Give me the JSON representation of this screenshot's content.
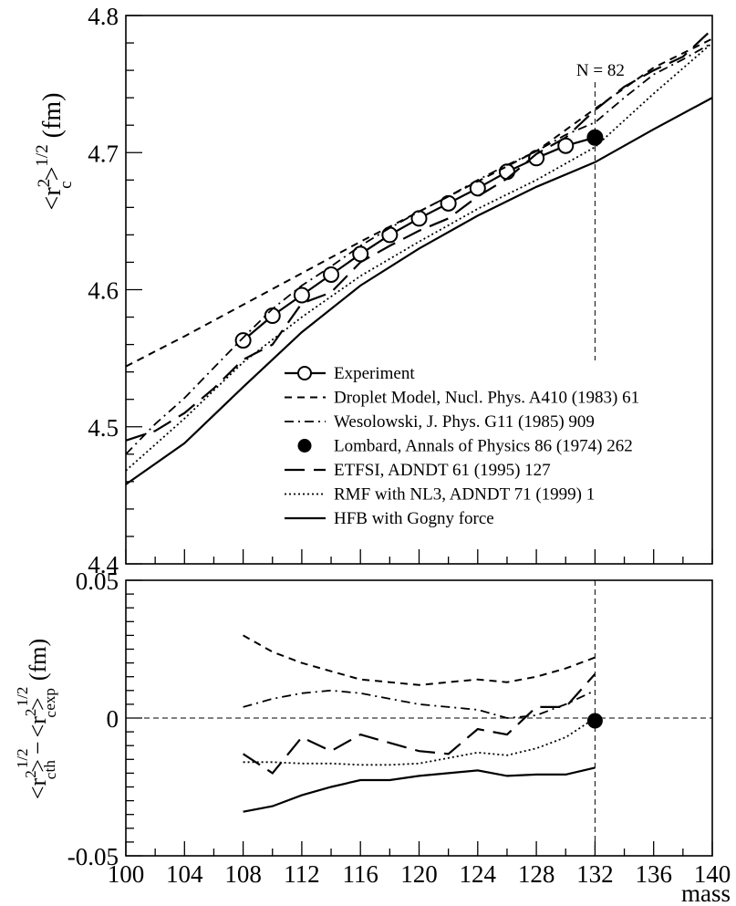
{
  "chart_data": [
    {
      "type": "line",
      "panel": "top",
      "ylabel": "<r_c^2>^1/2 (fm)",
      "xlim": [
        100,
        140
      ],
      "ylim": [
        4.4,
        4.8
      ],
      "yticks": [
        "4.4",
        "4.5",
        "4.6",
        "4.7",
        "4.8"
      ],
      "annotation": "N = 82",
      "vline_x": 132,
      "legend_position": "bottom-right",
      "series": [
        {
          "name": "Experiment",
          "style": "solid-circles",
          "x": [
            108,
            110,
            112,
            114,
            116,
            118,
            120,
            122,
            124,
            126,
            128,
            130,
            132
          ],
          "y": [
            4.563,
            4.581,
            4.596,
            4.611,
            4.626,
            4.64,
            4.652,
            4.663,
            4.674,
            4.686,
            4.696,
            4.705,
            4.711
          ]
        },
        {
          "name": "Droplet Model, Nucl. Phys. A410 (1983) 61",
          "style": "dashed",
          "x": [
            100,
            104,
            108,
            112,
            116,
            120,
            124,
            128,
            132,
            136,
            140
          ],
          "y": [
            4.544,
            4.566,
            4.589,
            4.612,
            4.635,
            4.657,
            4.679,
            4.701,
            4.732,
            4.762,
            4.783
          ]
        },
        {
          "name": "Wesolowski, J. Phys. G11 (1985) 909",
          "style": "dashdot",
          "x": [
            100,
            102,
            104,
            106,
            108,
            110,
            112,
            114,
            116,
            118,
            120,
            122,
            124,
            126,
            128,
            130,
            132,
            134,
            136,
            138,
            140
          ],
          "y": [
            4.48,
            4.502,
            4.521,
            4.543,
            4.565,
            4.586,
            4.603,
            4.617,
            4.632,
            4.645,
            4.657,
            4.668,
            4.68,
            4.691,
            4.701,
            4.713,
            4.722,
            4.74,
            4.757,
            4.768,
            4.78
          ]
        },
        {
          "name": "Lombard, Annals of Physics 86 (1974) 262",
          "style": "dot-marker",
          "x": [
            132
          ],
          "y": [
            4.711
          ]
        },
        {
          "name": "ETFSI, ADNDT 61 (1995) 127",
          "style": "longdash",
          "x": [
            100,
            102,
            104,
            106,
            108,
            110,
            112,
            114,
            116,
            118,
            120,
            122,
            124,
            126,
            128,
            130,
            132,
            134,
            136,
            138,
            140
          ],
          "y": [
            4.49,
            4.497,
            4.51,
            4.528,
            4.549,
            4.56,
            4.59,
            4.598,
            4.62,
            4.632,
            4.643,
            4.652,
            4.668,
            4.681,
            4.699,
            4.711,
            4.731,
            4.748,
            4.76,
            4.77,
            4.79
          ]
        },
        {
          "name": "RMF with NL3, ADNDT 71 (1999) 1",
          "style": "dotted",
          "x": [
            100,
            104,
            108,
            112,
            116,
            120,
            124,
            128,
            132,
            136,
            140
          ],
          "y": [
            4.468,
            4.506,
            4.547,
            4.58,
            4.61,
            4.635,
            4.659,
            4.68,
            4.704,
            4.743,
            4.78
          ]
        },
        {
          "name": "HFB with Gogny force",
          "style": "solid",
          "x": [
            100,
            104,
            108,
            112,
            116,
            120,
            124,
            128,
            132,
            136,
            140
          ],
          "y": [
            4.458,
            4.488,
            4.529,
            4.569,
            4.603,
            4.63,
            4.654,
            4.675,
            4.693,
            4.717,
            4.74
          ]
        }
      ]
    },
    {
      "type": "line",
      "panel": "bottom",
      "ylabel": "<r_c^2>_th^1/2 - <r_c^2>_exp^1/2 (fm)",
      "xlabel": "mass",
      "xlim": [
        100,
        140
      ],
      "ylim": [
        -0.05,
        0.05
      ],
      "xticks": [
        "100",
        "104",
        "108",
        "112",
        "116",
        "120",
        "124",
        "128",
        "132",
        "136",
        "140"
      ],
      "yticks": [
        "-0.05",
        "0",
        "0.05"
      ],
      "hline_y": 0,
      "vline_x": 132,
      "series": [
        {
          "name": "Droplet Model, Nucl. Phys. A410 (1983) 61",
          "style": "dashed",
          "x": [
            108,
            110,
            112,
            114,
            116,
            118,
            120,
            122,
            124,
            126,
            128,
            130,
            132
          ],
          "y": [
            0.03,
            0.024,
            0.02,
            0.017,
            0.014,
            0.013,
            0.012,
            0.013,
            0.014,
            0.013,
            0.015,
            0.018,
            0.022
          ]
        },
        {
          "name": "Wesolowski, J. Phys. G11 (1985) 909",
          "style": "dashdot",
          "x": [
            108,
            110,
            112,
            114,
            116,
            118,
            120,
            122,
            124,
            126,
            128,
            130,
            132
          ],
          "y": [
            0.004,
            0.007,
            0.009,
            0.01,
            0.009,
            0.007,
            0.005,
            0.004,
            0.003,
            0,
            0.001,
            0.005,
            0.01
          ]
        },
        {
          "name": "ETFSI, ADNDT 61 (1995) 127",
          "style": "longdash",
          "x": [
            108,
            110,
            112,
            114,
            116,
            118,
            120,
            122,
            124,
            126,
            128,
            130,
            132
          ],
          "y": [
            -0.013,
            -0.02,
            -0.007,
            -0.012,
            -0.006,
            -0.009,
            -0.012,
            -0.013,
            -0.004,
            -0.006,
            0.004,
            0.004,
            0.016
          ]
        },
        {
          "name": "RMF with NL3, ADNDT 71 (1999) 1",
          "style": "dotted",
          "x": [
            108,
            110,
            112,
            114,
            116,
            118,
            120,
            122,
            124,
            126,
            128,
            130,
            132
          ],
          "y": [
            -0.016,
            -0.016,
            -0.0165,
            -0.0165,
            -0.017,
            -0.017,
            -0.0165,
            -0.0145,
            -0.0125,
            -0.0135,
            -0.011,
            -0.007,
            0
          ]
        },
        {
          "name": "HFB with Gogny force",
          "style": "solid",
          "x": [
            108,
            110,
            112,
            114,
            116,
            118,
            120,
            122,
            124,
            126,
            128,
            130,
            132
          ],
          "y": [
            -0.034,
            -0.032,
            -0.028,
            -0.025,
            -0.0225,
            -0.0225,
            -0.021,
            -0.02,
            -0.019,
            -0.021,
            -0.0205,
            -0.0205,
            -0.018
          ]
        },
        {
          "name": "Lombard, Annals of Physics 86 (1974) 262",
          "style": "dot-marker",
          "x": [
            132
          ],
          "y": [
            -0.001
          ]
        }
      ]
    }
  ],
  "labels": {
    "top_ylabel_main": "<r",
    "top_ylabel_sup2": "2",
    "top_ylabel_sub": "c",
    "top_ylabel_mid": ">",
    "top_ylabel_exp": "1/2",
    "top_ylabel_unit": " (fm)",
    "bot_ylabel_th": "th",
    "bot_ylabel_exp": "exp",
    "bot_ylabel_minus": "−",
    "bot_ylabel_unit": "(fm)",
    "xlabel": "mass"
  }
}
